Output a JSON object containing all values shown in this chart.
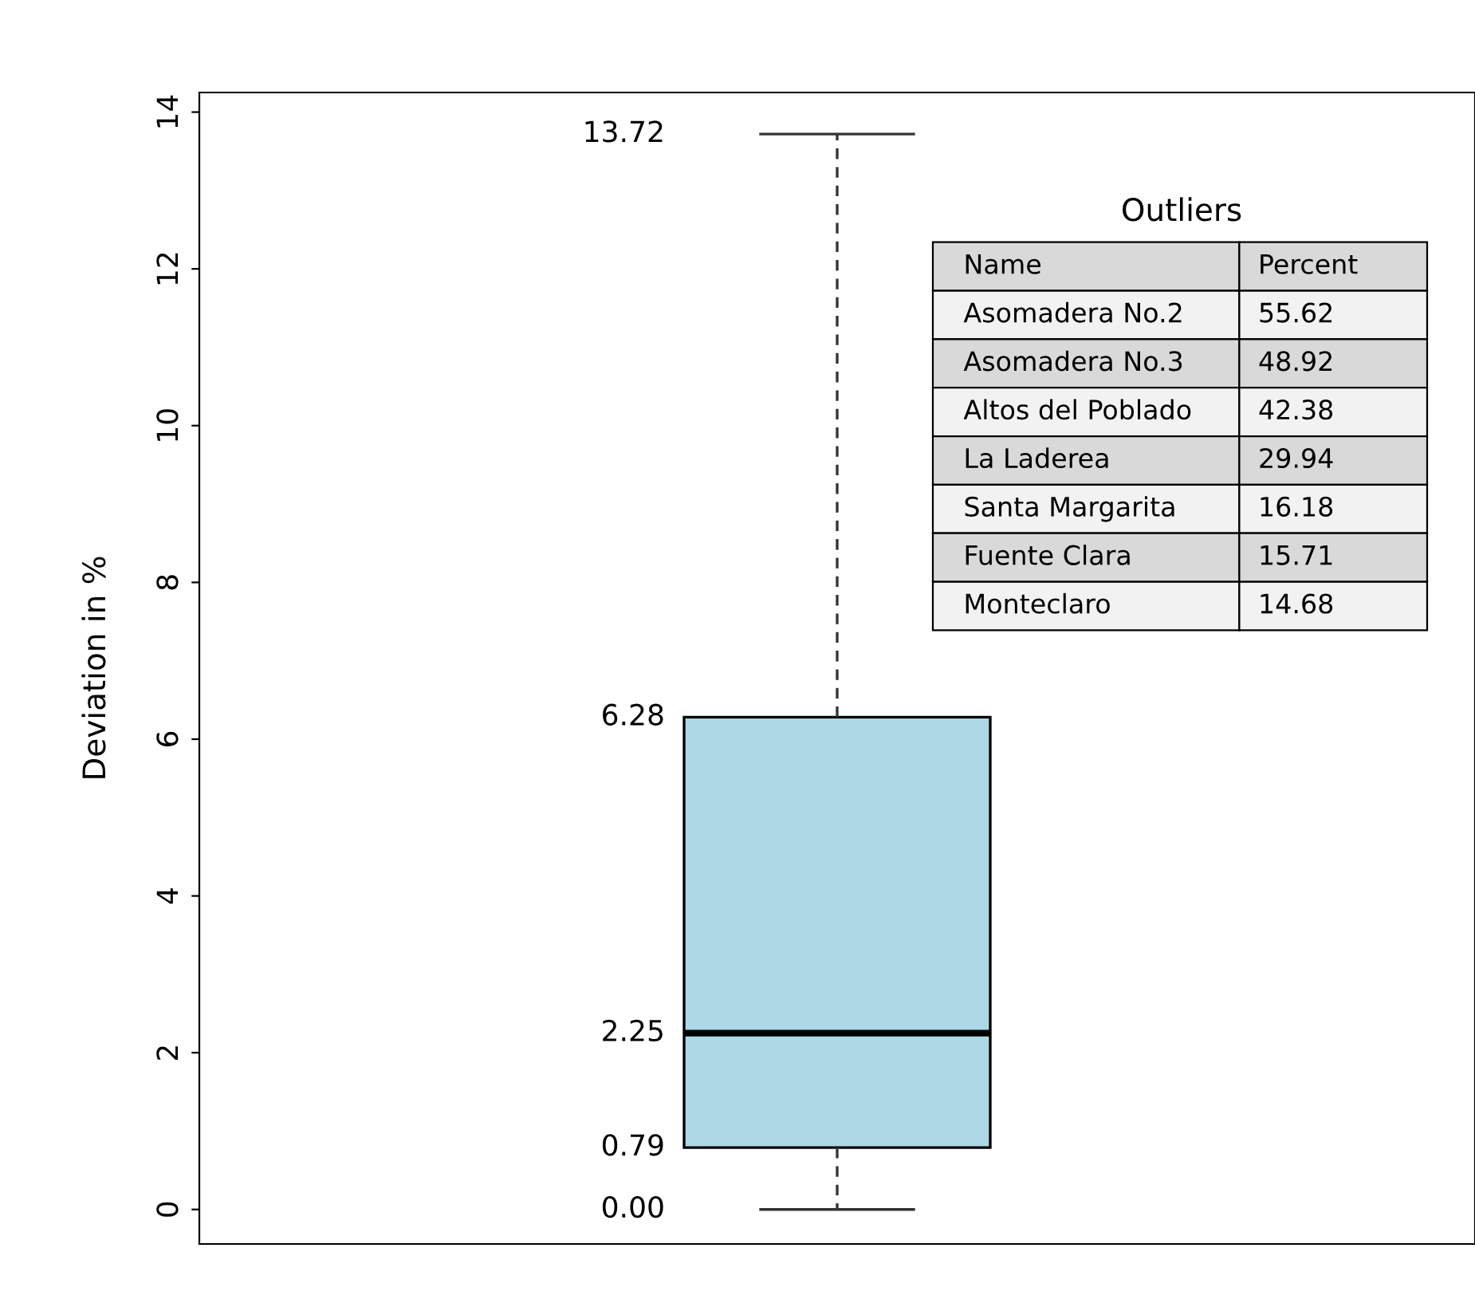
{
  "chart_data": {
    "type": "box",
    "ylabel": "Deviation in %",
    "categories": [
      null
    ],
    "boxes": [
      {
        "low": 0.0,
        "q1": 0.79,
        "median": 2.25,
        "q3": 6.28,
        "high": 13.72
      }
    ],
    "color": "#add8e6",
    "value_labels": [
      [
        "0.00",
        "0.79",
        "2.25",
        "6.28",
        "13.72"
      ]
    ],
    "ylim": [
      -0.44,
      14.25
    ],
    "yticks": [
      0,
      2,
      4,
      6,
      8,
      10,
      12,
      14
    ],
    "tick_labels": "y",
    "grid": false,
    "annotations": [
      "Outliers",
      "Name",
      "Percent",
      "Asomadera No.2",
      "55.62",
      "Asomadera No.3",
      "48.92",
      "Altos del Poblado",
      "42.38",
      "La Laderea",
      "29.94",
      "Santa Margarita",
      "16.18",
      "Fuente Clara",
      "15.71",
      "Monteclaro",
      "14.68"
    ]
  }
}
